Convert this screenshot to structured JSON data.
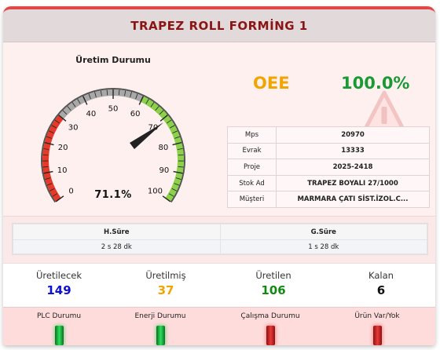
{
  "header": {
    "title": "TRAPEZ ROLL FORMİNG 1"
  },
  "gauge": {
    "title": "Üretim Durumu",
    "value": 71.1,
    "value_text": "71.1%",
    "ticks": [
      "0",
      "10",
      "20",
      "30",
      "40",
      "50",
      "60",
      "70",
      "80",
      "90",
      "100"
    ],
    "colors": {
      "low": "#e53a2a",
      "mid": "#a8a8a8",
      "high": "#8cd04c",
      "needle": "#222222"
    }
  },
  "oee": {
    "label": "OEE",
    "value": "100.0%",
    "label_color": "#f0a500",
    "value_color": "#1a9a34"
  },
  "info_table": [
    {
      "key": "Mps",
      "value": "20970"
    },
    {
      "key": "Evrak",
      "value": "13333"
    },
    {
      "key": "Proje",
      "value": "2025-2418"
    },
    {
      "key": "Stok Ad",
      "value": "TRAPEZ BOYALI 27/1000"
    },
    {
      "key": "Müşteri",
      "value": "MARMARA ÇATI SİST.İZOL.C..."
    }
  ],
  "durations": {
    "headers": [
      "H.Süre",
      "G.Süre"
    ],
    "values": [
      "2 s 28 dk",
      "1 s 28 dk"
    ]
  },
  "counts": [
    {
      "label": "Üretilecek",
      "value": "149",
      "color": "#1010d0"
    },
    {
      "label": "Üretilmiş",
      "value": "37",
      "color": "#f0a500"
    },
    {
      "label": "Üretilen",
      "value": "106",
      "color": "#128a12"
    },
    {
      "label": "Kalan",
      "value": "6",
      "color": "#111111"
    }
  ],
  "statuses": [
    {
      "label": "PLC Durumu",
      "state": "green"
    },
    {
      "label": "Enerji Durumu",
      "state": "green"
    },
    {
      "label": "Çalışma Durumu",
      "state": "red"
    },
    {
      "label": "Ürün Var/Yok",
      "state": "red"
    }
  ]
}
